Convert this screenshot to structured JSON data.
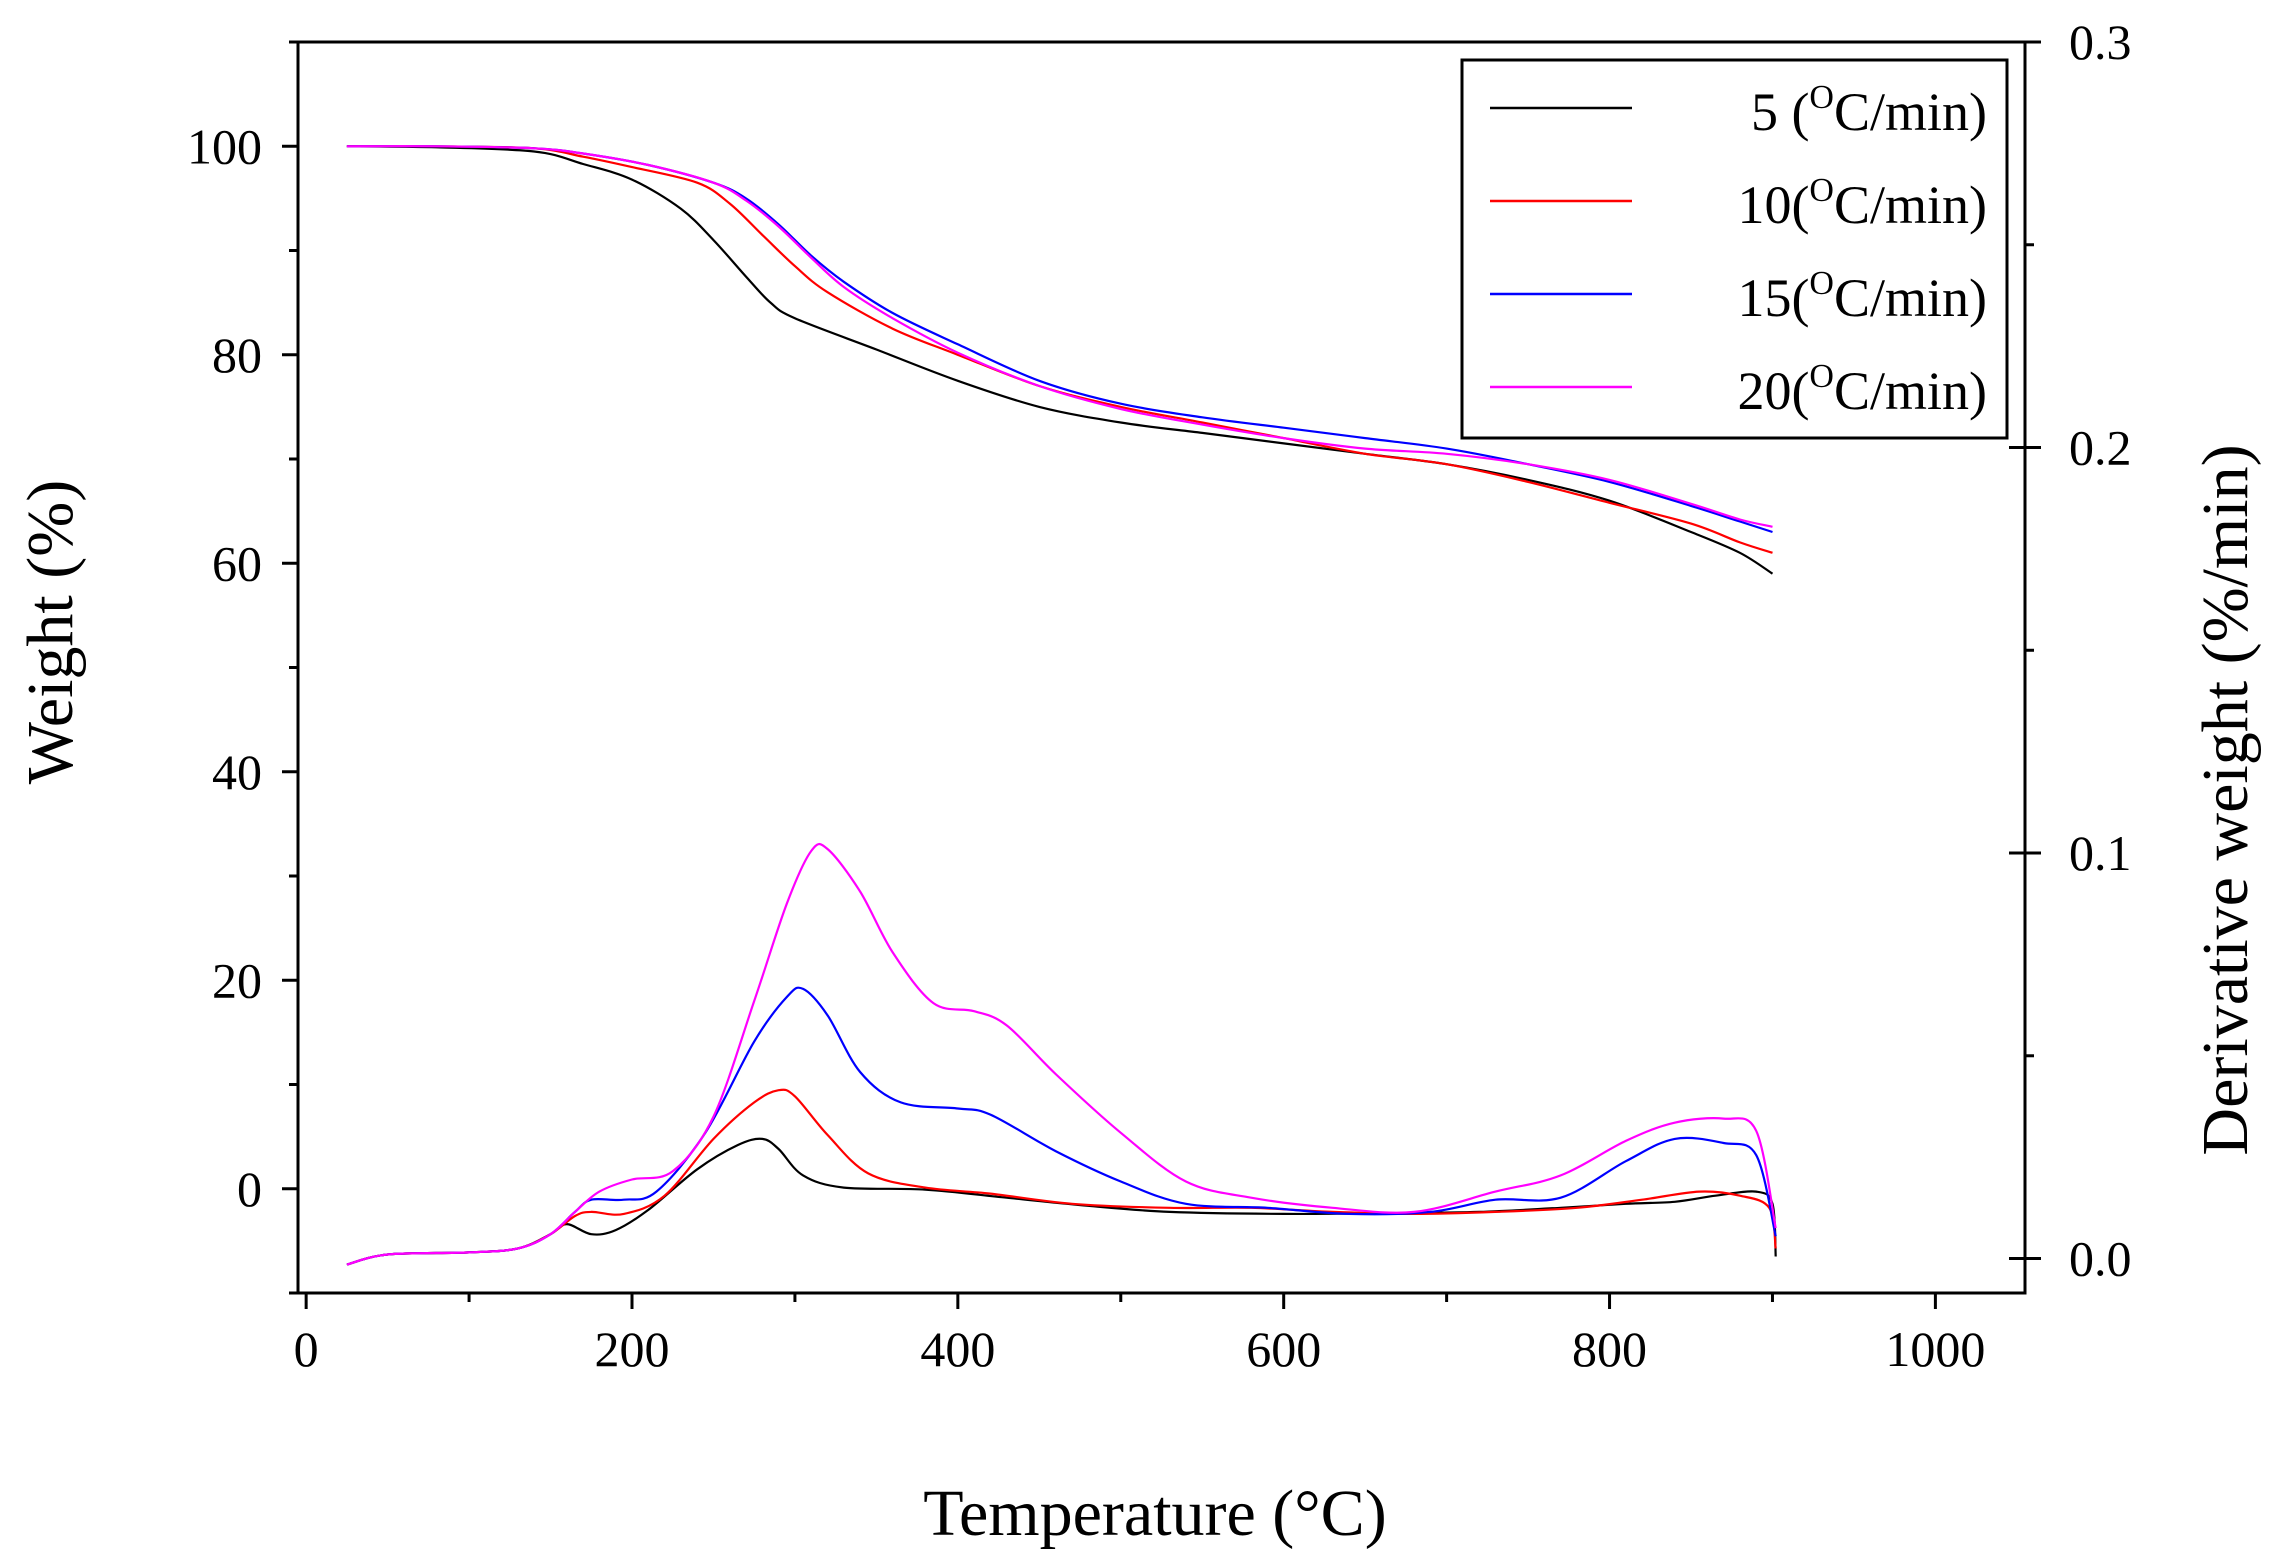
{
  "chart_data": {
    "type": "line",
    "title": "",
    "xlabel": "Temperature (°C)",
    "ylabel_left": "Weight (%)",
    "ylabel_right": "Derivative weight (%/min)",
    "xlim": [
      -5,
      1055
    ],
    "ylim_left": [
      -10,
      110
    ],
    "ylim_right": [
      -0.0085,
      0.3
    ],
    "x_ticks": [
      0,
      200,
      400,
      600,
      800,
      1000
    ],
    "x_tick_labels": [
      "0",
      "200",
      "400",
      "600",
      "800",
      "1000"
    ],
    "y_left_ticks": [
      0,
      20,
      40,
      60,
      80,
      100
    ],
    "y_left_tick_labels": [
      "0",
      "20",
      "40",
      "60",
      "80",
      "100"
    ],
    "y_right_ticks": [
      0.0,
      0.1,
      0.2,
      0.3
    ],
    "y_right_tick_labels": [
      "0.0",
      "0.1",
      "0.2",
      "0.3"
    ],
    "grid": false,
    "legend_position": "top-right",
    "series": [
      {
        "name": "5 (oC/min)",
        "legend_main": "5 (",
        "legend_sup": "O",
        "legend_tail": "C/min)",
        "color": "#000000",
        "tga": [
          [
            25,
            100
          ],
          [
            80,
            99.9
          ],
          [
            140,
            99.5
          ],
          [
            170,
            98.3
          ],
          [
            200,
            96.8
          ],
          [
            230,
            94
          ],
          [
            250,
            91
          ],
          [
            270,
            87.5
          ],
          [
            285,
            85
          ],
          [
            300,
            83.5
          ],
          [
            350,
            80.5
          ],
          [
            400,
            77.5
          ],
          [
            450,
            75
          ],
          [
            500,
            73.5
          ],
          [
            550,
            72.5
          ],
          [
            600,
            71.5
          ],
          [
            650,
            70.5
          ],
          [
            700,
            69.5
          ],
          [
            750,
            68
          ],
          [
            800,
            66
          ],
          [
            850,
            63
          ],
          [
            880,
            61
          ],
          [
            900,
            59
          ]
        ],
        "dtg": [
          [
            25,
            -0.0015
          ],
          [
            50,
            0.001
          ],
          [
            100,
            0.0015
          ],
          [
            130,
            0.0025
          ],
          [
            150,
            0.006
          ],
          [
            160,
            0.0085
          ],
          [
            175,
            0.006
          ],
          [
            190,
            0.007
          ],
          [
            210,
            0.012
          ],
          [
            240,
            0.022
          ],
          [
            265,
            0.028
          ],
          [
            280,
            0.0295
          ],
          [
            290,
            0.027
          ],
          [
            305,
            0.0205
          ],
          [
            330,
            0.0175
          ],
          [
            380,
            0.017
          ],
          [
            430,
            0.015
          ],
          [
            480,
            0.013
          ],
          [
            530,
            0.0115
          ],
          [
            600,
            0.011
          ],
          [
            670,
            0.0112
          ],
          [
            720,
            0.0115
          ],
          [
            770,
            0.0125
          ],
          [
            810,
            0.0135
          ],
          [
            840,
            0.014
          ],
          [
            865,
            0.0155
          ],
          [
            890,
            0.0165
          ],
          [
            900,
            0.0135
          ],
          [
            902,
            0.0005
          ]
        ]
      },
      {
        "name": "10(oC/min)",
        "legend_main": "10(",
        "legend_sup": "O",
        "legend_tail": "C/min)",
        "color": "#ff0000",
        "tga": [
          [
            25,
            100
          ],
          [
            80,
            100
          ],
          [
            140,
            99.8
          ],
          [
            170,
            99
          ],
          [
            200,
            98
          ],
          [
            240,
            96.5
          ],
          [
            260,
            94.5
          ],
          [
            280,
            91.5
          ],
          [
            300,
            88.5
          ],
          [
            320,
            86
          ],
          [
            360,
            82.5
          ],
          [
            400,
            80
          ],
          [
            450,
            77
          ],
          [
            500,
            75
          ],
          [
            550,
            73.5
          ],
          [
            600,
            72
          ],
          [
            650,
            70.5
          ],
          [
            700,
            69.5
          ],
          [
            750,
            67.8
          ],
          [
            800,
            65.8
          ],
          [
            850,
            63.8
          ],
          [
            880,
            62
          ],
          [
            900,
            61
          ]
        ],
        "dtg": [
          [
            25,
            -0.0015
          ],
          [
            50,
            0.001
          ],
          [
            100,
            0.0015
          ],
          [
            130,
            0.0025
          ],
          [
            150,
            0.006
          ],
          [
            165,
            0.0105
          ],
          [
            175,
            0.0115
          ],
          [
            195,
            0.011
          ],
          [
            220,
            0.0155
          ],
          [
            250,
            0.0295
          ],
          [
            275,
            0.0385
          ],
          [
            290,
            0.0415
          ],
          [
            300,
            0.04
          ],
          [
            320,
            0.0305
          ],
          [
            345,
            0.021
          ],
          [
            380,
            0.0175
          ],
          [
            420,
            0.016
          ],
          [
            470,
            0.0135
          ],
          [
            530,
            0.0125
          ],
          [
            580,
            0.0125
          ],
          [
            630,
            0.0115
          ],
          [
            680,
            0.011
          ],
          [
            730,
            0.0115
          ],
          [
            780,
            0.0125
          ],
          [
            820,
            0.0145
          ],
          [
            855,
            0.0165
          ],
          [
            880,
            0.0155
          ],
          [
            898,
            0.0125
          ],
          [
            902,
            0.0025
          ]
        ]
      },
      {
        "name": "15(oC/min)",
        "legend_main": "15(",
        "legend_sup": "O",
        "legend_tail": "C/min)",
        "color": "#0000ff",
        "tga": [
          [
            25,
            100
          ],
          [
            80,
            100
          ],
          [
            140,
            99.8
          ],
          [
            170,
            99.3
          ],
          [
            210,
            98.2
          ],
          [
            250,
            96.5
          ],
          [
            270,
            95
          ],
          [
            290,
            92.5
          ],
          [
            310,
            89.5
          ],
          [
            330,
            87
          ],
          [
            360,
            84
          ],
          [
            400,
            81
          ],
          [
            450,
            77.5
          ],
          [
            500,
            75.3
          ],
          [
            550,
            74
          ],
          [
            600,
            73
          ],
          [
            650,
            72
          ],
          [
            700,
            71
          ],
          [
            750,
            69.5
          ],
          [
            800,
            67.8
          ],
          [
            850,
            65.5
          ],
          [
            880,
            64
          ],
          [
            900,
            63
          ]
        ],
        "dtg": [
          [
            25,
            -0.0015
          ],
          [
            50,
            0.001
          ],
          [
            100,
            0.0015
          ],
          [
            130,
            0.0025
          ],
          [
            150,
            0.006
          ],
          [
            165,
            0.0115
          ],
          [
            175,
            0.0145
          ],
          [
            195,
            0.0145
          ],
          [
            215,
            0.0165
          ],
          [
            245,
            0.031
          ],
          [
            275,
            0.0535
          ],
          [
            295,
            0.0645
          ],
          [
            305,
            0.0665
          ],
          [
            320,
            0.06
          ],
          [
            340,
            0.046
          ],
          [
            365,
            0.0385
          ],
          [
            400,
            0.037
          ],
          [
            420,
            0.0355
          ],
          [
            460,
            0.0265
          ],
          [
            500,
            0.019
          ],
          [
            540,
            0.0135
          ],
          [
            590,
            0.0125
          ],
          [
            640,
            0.011
          ],
          [
            690,
            0.0115
          ],
          [
            730,
            0.0145
          ],
          [
            770,
            0.015
          ],
          [
            810,
            0.024
          ],
          [
            840,
            0.0295
          ],
          [
            870,
            0.0285
          ],
          [
            890,
            0.0255
          ],
          [
            902,
            0.0055
          ]
        ]
      },
      {
        "name": "20(oC/min)",
        "legend_main": "20(",
        "legend_sup": "O",
        "legend_tail": "C/min)",
        "color": "#ff00ff",
        "tga": [
          [
            25,
            100
          ],
          [
            80,
            100
          ],
          [
            140,
            99.8
          ],
          [
            170,
            99.3
          ],
          [
            210,
            98.2
          ],
          [
            250,
            96.5
          ],
          [
            270,
            94.8
          ],
          [
            290,
            92.3
          ],
          [
            310,
            89.3
          ],
          [
            330,
            86.5
          ],
          [
            360,
            83.5
          ],
          [
            400,
            80.2
          ],
          [
            450,
            77
          ],
          [
            500,
            74.8
          ],
          [
            550,
            73.3
          ],
          [
            600,
            72
          ],
          [
            650,
            71
          ],
          [
            700,
            70.5
          ],
          [
            750,
            69.5
          ],
          [
            800,
            68
          ],
          [
            850,
            65.7
          ],
          [
            880,
            64.2
          ],
          [
            900,
            63.5
          ]
        ],
        "dtg": [
          [
            25,
            -0.0015
          ],
          [
            50,
            0.001
          ],
          [
            100,
            0.0015
          ],
          [
            130,
            0.0025
          ],
          [
            150,
            0.006
          ],
          [
            165,
            0.0115
          ],
          [
            180,
            0.0165
          ],
          [
            200,
            0.0195
          ],
          [
            225,
            0.0215
          ],
          [
            250,
            0.035
          ],
          [
            275,
            0.0635
          ],
          [
            295,
            0.0875
          ],
          [
            310,
            0.1005
          ],
          [
            320,
            0.101
          ],
          [
            340,
            0.0905
          ],
          [
            360,
            0.0755
          ],
          [
            385,
            0.063
          ],
          [
            410,
            0.061
          ],
          [
            430,
            0.0575
          ],
          [
            460,
            0.0455
          ],
          [
            500,
            0.031
          ],
          [
            540,
            0.019
          ],
          [
            580,
            0.015
          ],
          [
            630,
            0.0125
          ],
          [
            680,
            0.0115
          ],
          [
            730,
            0.0165
          ],
          [
            770,
            0.0205
          ],
          [
            810,
            0.029
          ],
          [
            840,
            0.0335
          ],
          [
            870,
            0.0345
          ],
          [
            890,
            0.0315
          ],
          [
            902,
            0.0075
          ]
        ]
      }
    ]
  }
}
